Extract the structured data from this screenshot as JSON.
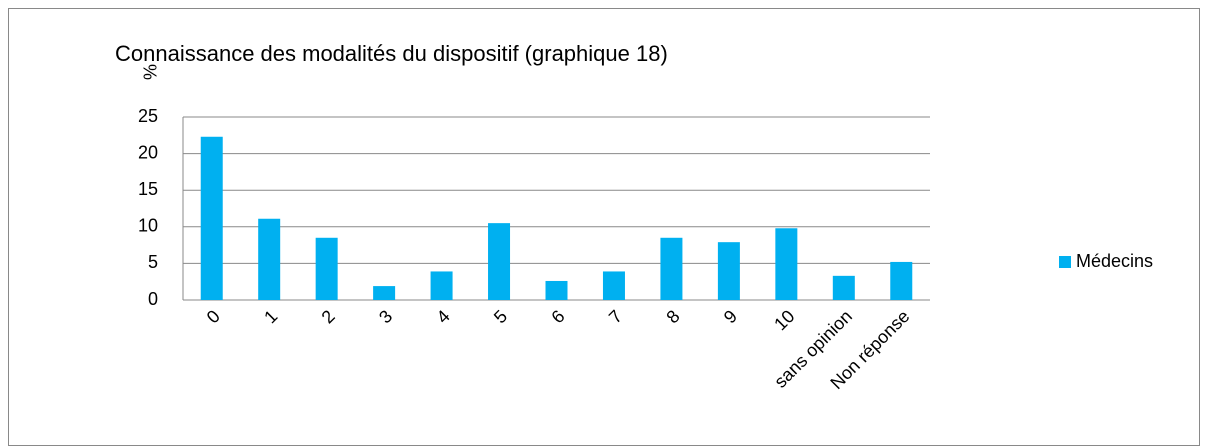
{
  "chart_data": {
    "type": "bar",
    "title": "Connaissance des modalités du dispositif (graphique 18)",
    "ylabel": "%",
    "categories": [
      "0",
      "1",
      "2",
      "3",
      "4",
      "5",
      "6",
      "7",
      "8",
      "9",
      "10",
      "sans opinion",
      "Non réponse"
    ],
    "series": [
      {
        "name": "Médecins",
        "color": "#00b0f0",
        "values": [
          22.3,
          11.1,
          8.5,
          1.9,
          3.9,
          10.5,
          2.6,
          3.9,
          8.5,
          7.9,
          9.8,
          3.3,
          5.2
        ]
      }
    ],
    "ylim": [
      0,
      25
    ],
    "yticks": [
      0,
      5,
      10,
      15,
      20,
      25
    ],
    "grid": true,
    "legend": "right"
  }
}
